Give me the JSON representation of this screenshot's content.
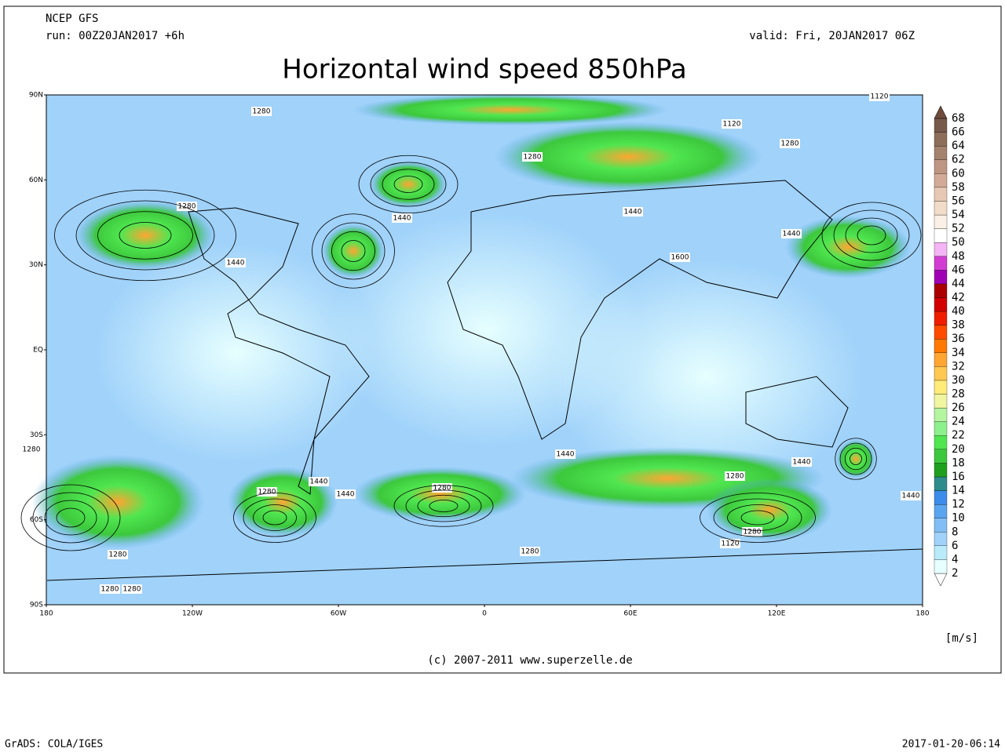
{
  "header": {
    "model": "NCEP GFS",
    "run": "run: 00Z20JAN2017 +6h",
    "valid": "valid: Fri, 20JAN2017 06Z",
    "title": "Horizontal wind speed 850hPa"
  },
  "map": {
    "lat_labels": [
      "90N",
      "60N",
      "30N",
      "EQ",
      "30S",
      "60S",
      "90S"
    ],
    "lon_labels": [
      "180",
      "120W",
      "60W",
      "0",
      "60E",
      "120E",
      "180"
    ],
    "contour_labels": [
      "1280",
      "1120",
      "1120",
      "1280",
      "1280",
      "1280",
      "1440",
      "1440",
      "1440",
      "1440",
      "1600",
      "1280",
      "1440",
      "1440",
      "1440",
      "1280",
      "1440",
      "1280",
      "1280",
      "1440",
      "1280",
      "1120",
      "1280",
      "1280",
      "1280",
      "1280"
    ]
  },
  "colorbar": {
    "levels": [
      2,
      4,
      6,
      8,
      10,
      12,
      14,
      16,
      18,
      20,
      22,
      24,
      26,
      28,
      30,
      32,
      34,
      36,
      38,
      40,
      42,
      44,
      46,
      48,
      50,
      52,
      54,
      56,
      58,
      60,
      62,
      64,
      66,
      68
    ],
    "colors": [
      "#ffffff",
      "#e6ffff",
      "#b9ebfa",
      "#a0d2fa",
      "#82bef5",
      "#5aa5f0",
      "#3c8ceb",
      "#2e8c8c",
      "#1ea01e",
      "#3cc83c",
      "#50e650",
      "#8cf08c",
      "#b4f5a0",
      "#f0f5a0",
      "#ffeb78",
      "#ffc850",
      "#ffa532",
      "#ff7800",
      "#ff4b00",
      "#f01e00",
      "#d20000",
      "#aa0000",
      "#a000b4",
      "#d23cd2",
      "#f5b4f5",
      "#ffffff",
      "#faf0e6",
      "#f0dcc8",
      "#e6c8b4",
      "#d2aa96",
      "#be9682",
      "#a5826e",
      "#8c6e5a",
      "#785a4b",
      "#6e4b3c"
    ],
    "unit": "[m/s]"
  },
  "credit": "(c) 2007-2011 www.superzelle.de",
  "footer": {
    "left": "GrADS: COLA/IGES",
    "right": "2017-01-20-06:14"
  }
}
